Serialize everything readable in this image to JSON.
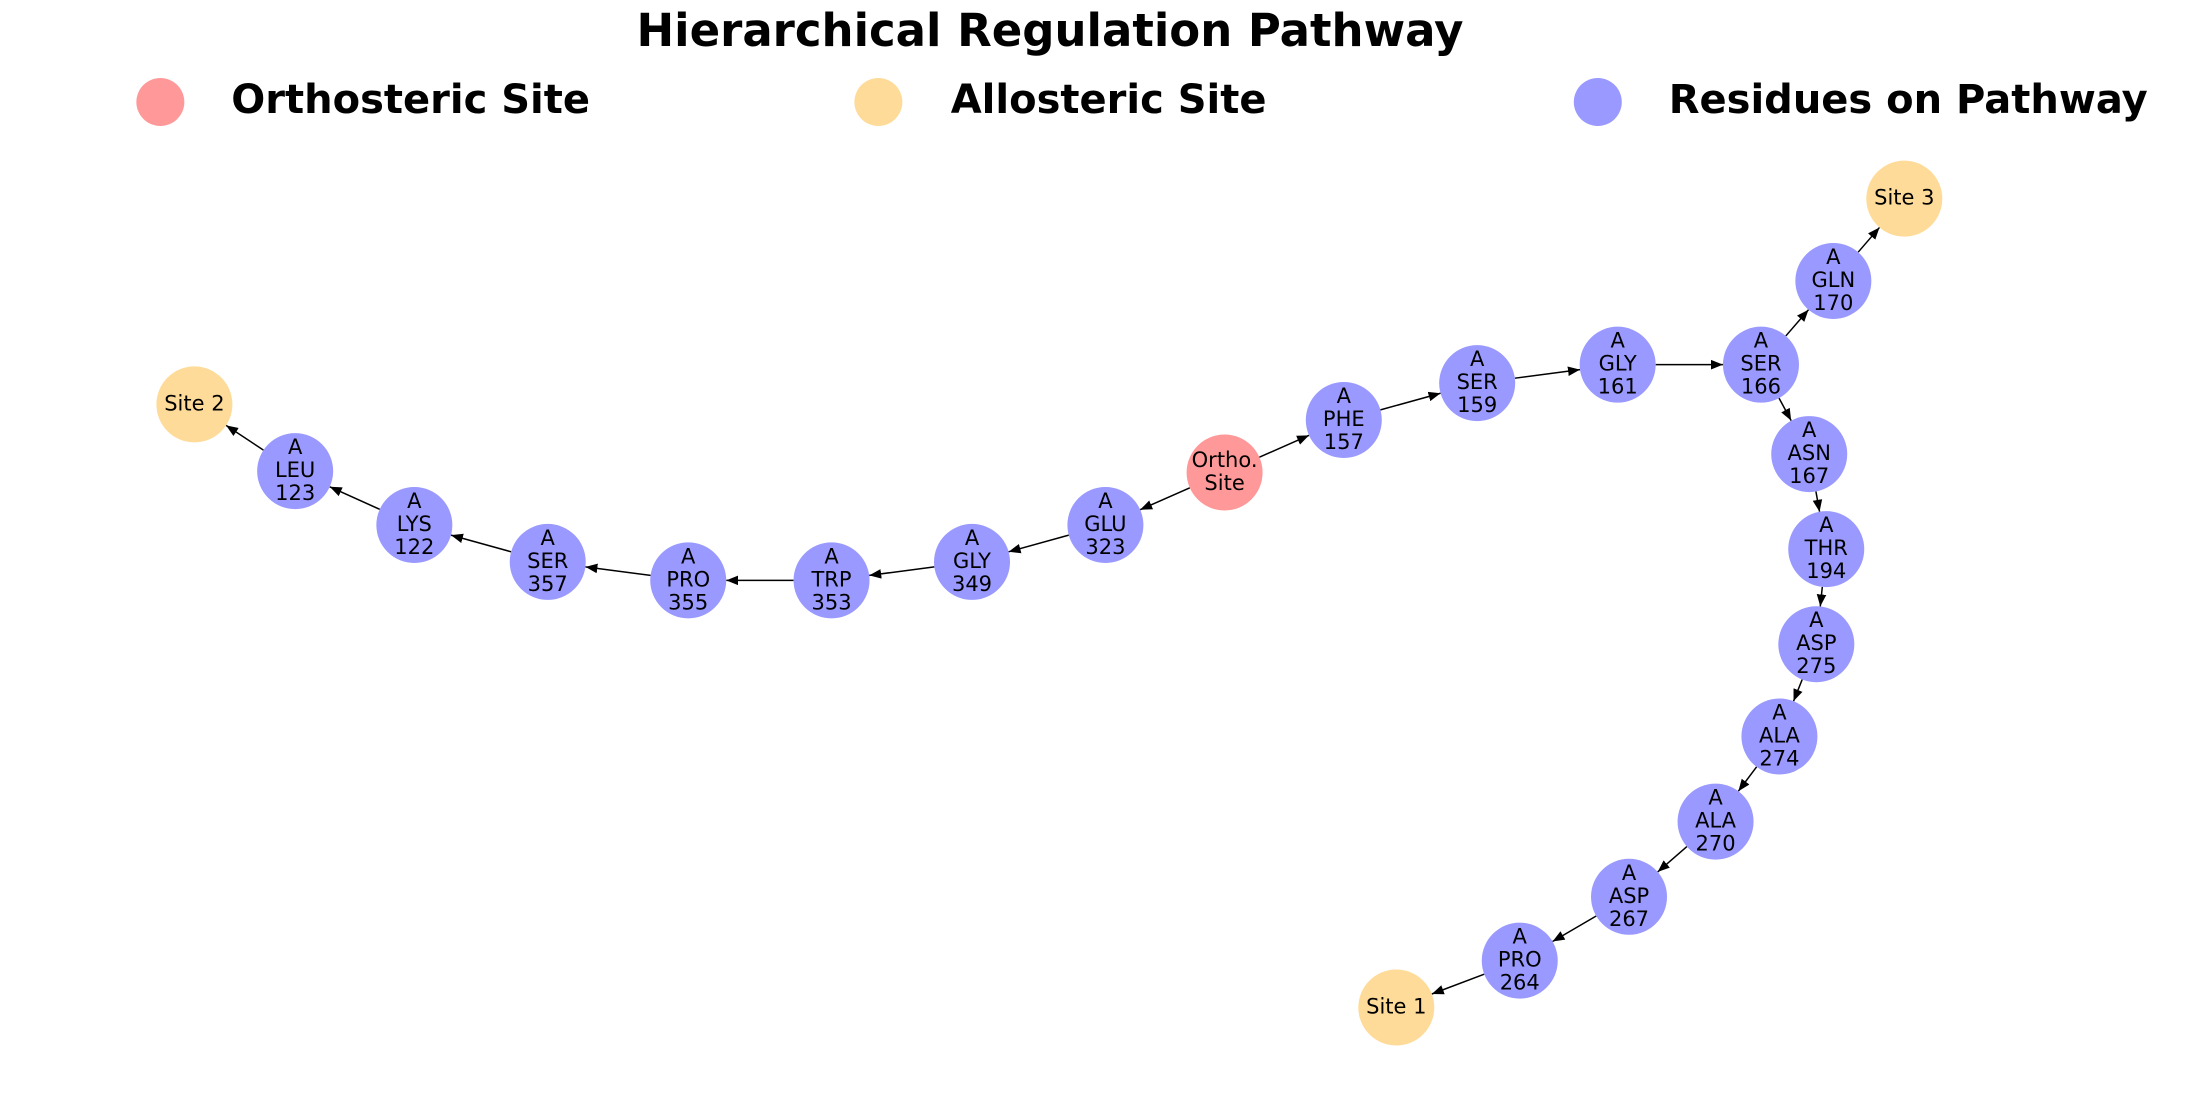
{
  "title": "Hierarchical Regulation Pathway",
  "legend": [
    {
      "label": "Orthosteric Site",
      "color": "#ff9999"
    },
    {
      "label": "Allosteric Site",
      "color": "#ffdb99"
    },
    {
      "label": "Residues on Pathway",
      "color": "#9999ff"
    }
  ],
  "nodes": [
    {
      "lines": [
        "Ortho.",
        "Site"
      ]
    },
    {
      "lines": [
        "A",
        "PHE",
        "157"
      ]
    },
    {
      "lines": [
        "A",
        "SER",
        "159"
      ]
    },
    {
      "lines": [
        "A",
        "GLY",
        "161"
      ]
    },
    {
      "lines": [
        "A",
        "SER",
        "166"
      ]
    },
    {
      "lines": [
        "A",
        "GLN",
        "170"
      ]
    },
    {
      "lines": [
        "Site 3"
      ]
    },
    {
      "lines": [
        "A",
        "ASN",
        "167"
      ]
    },
    {
      "lines": [
        "A",
        "THR",
        "194"
      ]
    },
    {
      "lines": [
        "A",
        "ASP",
        "275"
      ]
    },
    {
      "lines": [
        "A",
        "ALA",
        "274"
      ]
    },
    {
      "lines": [
        "A",
        "ALA",
        "270"
      ]
    },
    {
      "lines": [
        "A",
        "ASP",
        "267"
      ]
    },
    {
      "lines": [
        "A",
        "PRO",
        "264"
      ]
    },
    {
      "lines": [
        "Site 1"
      ]
    },
    {
      "lines": [
        "A",
        "GLU",
        "323"
      ]
    },
    {
      "lines": [
        "A",
        "GLY",
        "349"
      ]
    },
    {
      "lines": [
        "A",
        "TRP",
        "353"
      ]
    },
    {
      "lines": [
        "A",
        "PRO",
        "355"
      ]
    },
    {
      "lines": [
        "A",
        "SER",
        "357"
      ]
    },
    {
      "lines": [
        "A",
        "LYS",
        "122"
      ]
    },
    {
      "lines": [
        "A",
        "LEU",
        "123"
      ]
    },
    {
      "lines": [
        "Site 2"
      ]
    }
  ]
}
